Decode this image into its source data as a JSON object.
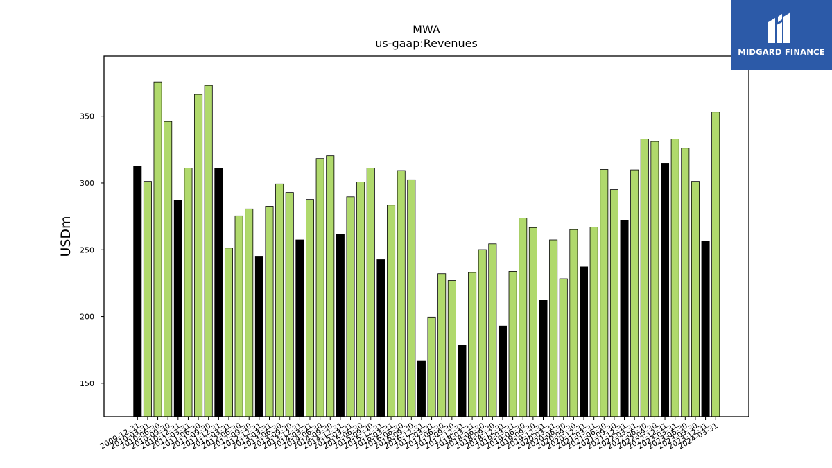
{
  "brand": {
    "name": "MIDGARD FINANCE",
    "logo_icon": "midgard-finance-logo-icon",
    "background_color": "#2c5aa8"
  },
  "chart_data": {
    "type": "bar",
    "title": "MWA",
    "subtitle": "us-gaap:Revenues",
    "xlabel": "",
    "ylabel": "USDm",
    "ylim": [
      125,
      395
    ],
    "yticks": [
      150,
      200,
      250,
      300,
      350
    ],
    "grid": false,
    "legend": "none",
    "colors": {
      "year_end": "#000000",
      "quarter": "#b0d96c",
      "edge": "#000000"
    },
    "categories": [
      "2009-12-31",
      "2010-03-31",
      "2010-06-30",
      "2010-09-30",
      "2010-12-31",
      "2011-03-31",
      "2011-06-30",
      "2011-09-30",
      "2011-12-31",
      "2012-03-31",
      "2012-06-30",
      "2012-09-30",
      "2012-12-31",
      "2013-03-31",
      "2013-06-30",
      "2013-09-30",
      "2013-12-31",
      "2014-03-31",
      "2014-06-30",
      "2014-09-30",
      "2014-12-31",
      "2015-03-31",
      "2015-06-30",
      "2015-09-30",
      "2015-12-31",
      "2016-03-31",
      "2016-06-30",
      "2016-09-30",
      "2016-12-31",
      "2017-03-31",
      "2017-06-30",
      "2017-09-30",
      "2017-12-31",
      "2018-03-31",
      "2018-06-30",
      "2018-09-30",
      "2018-12-31",
      "2019-03-31",
      "2019-06-30",
      "2019-09-30",
      "2019-12-31",
      "2020-03-31",
      "2020-06-30",
      "2020-09-30",
      "2020-12-31",
      "2021-03-31",
      "2021-06-30",
      "2021-09-30",
      "2021-12-31",
      "2022-03-31",
      "2022-06-30",
      "2022-09-30",
      "2022-12-31",
      "2023-03-31",
      "2023-06-30",
      "2023-09-30",
      "2023-12-31",
      "2024-03-31"
    ],
    "values": [
      312.5,
      301.2,
      375.7,
      346.1,
      287.3,
      311.1,
      366.4,
      373.1,
      311.1,
      251.3,
      275.4,
      280.6,
      245.2,
      282.6,
      299.3,
      292.9,
      257.4,
      287.7,
      318.3,
      320.4,
      261.6,
      289.7,
      300.8,
      311.1,
      242.6,
      283.5,
      309.3,
      302.4,
      167.0,
      199.6,
      232.1,
      227.0,
      178.6,
      233.0,
      250.1,
      254.4,
      192.9,
      233.8,
      273.8,
      266.6,
      212.4,
      257.4,
      228.3,
      265.1,
      237.2,
      267.0,
      310.1,
      295.0,
      271.8,
      309.8,
      332.9,
      331.1,
      314.8,
      332.9,
      326.1,
      301.2,
      256.6,
      353.1
    ]
  }
}
